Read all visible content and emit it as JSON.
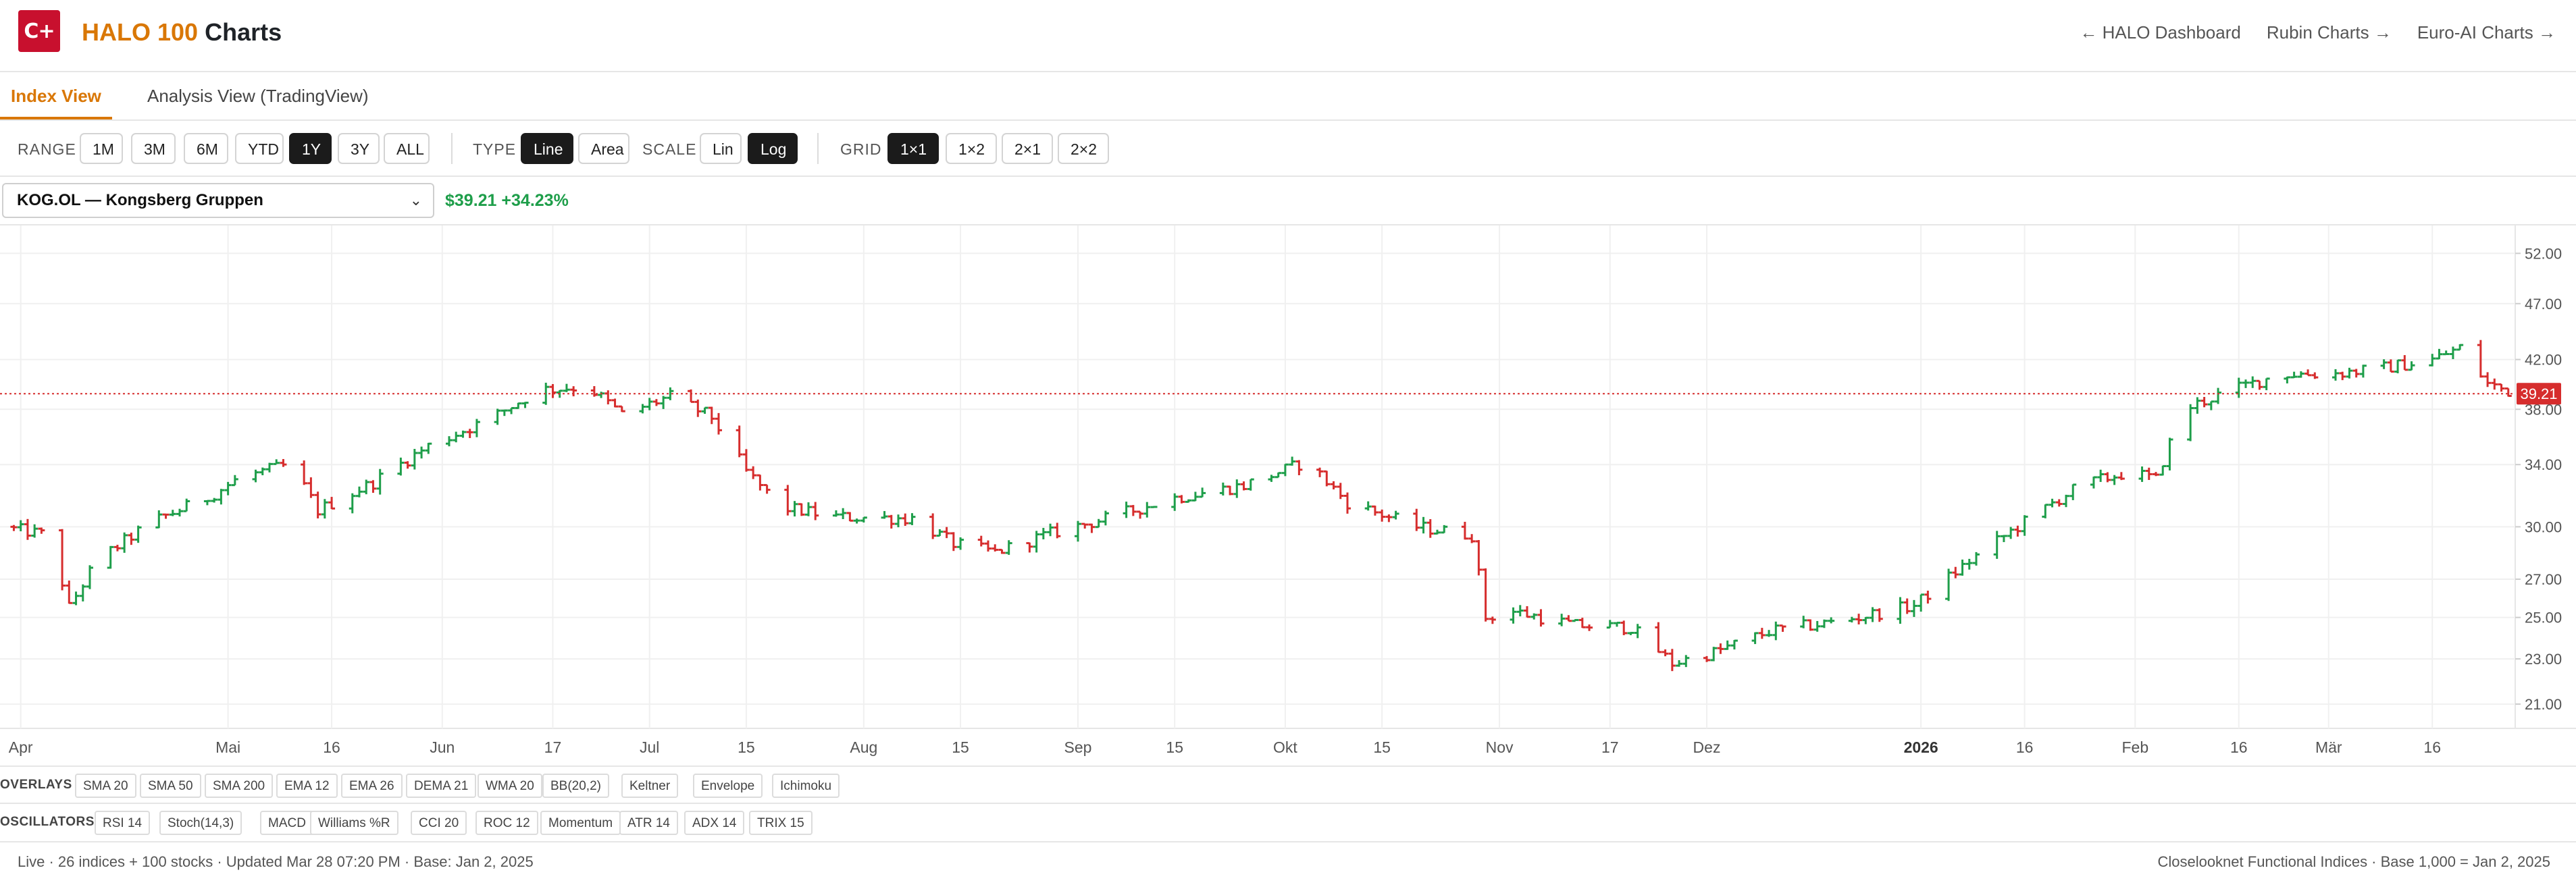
{
  "app": {
    "logo_text": "C+",
    "title_brand": "HALO 100",
    "title_rest": "Charts",
    "links": [
      "← HALO Dashboard",
      "Rubin Charts →",
      "Euro-AI Charts →"
    ]
  },
  "tabs": [
    {
      "label": "Index View",
      "active": true
    },
    {
      "label": "Analysis View (TradingView)",
      "active": false
    }
  ],
  "toolbar": {
    "range_label": "RANGE",
    "ranges": [
      {
        "label": "1M",
        "active": false
      },
      {
        "label": "3M",
        "active": false
      },
      {
        "label": "6M",
        "active": false
      },
      {
        "label": "YTD",
        "active": false
      },
      {
        "label": "1Y",
        "active": true
      },
      {
        "label": "3Y",
        "active": false
      },
      {
        "label": "ALL",
        "active": false
      }
    ],
    "type_label": "TYPE",
    "types": [
      {
        "label": "Line",
        "active": true
      },
      {
        "label": "Area",
        "active": false
      }
    ],
    "scale_label": "SCALE",
    "scales": [
      {
        "label": "Lin",
        "active": false
      },
      {
        "label": "Log",
        "active": true
      }
    ],
    "grid_label": "GRID",
    "grids": [
      {
        "label": "1×1",
        "active": true
      },
      {
        "label": "1×2",
        "active": false
      },
      {
        "label": "2×1",
        "active": false
      },
      {
        "label": "2×2",
        "active": false
      }
    ]
  },
  "symbol": {
    "selected": "KOG.OL — Kongsberg Gruppen",
    "price": "$39.21",
    "change": "+34.23%"
  },
  "chart_data": {
    "type": "ohlc",
    "scale": "log",
    "last_price": 39.21,
    "last_price_label": "39.21",
    "y_ticks": [
      21.0,
      23.0,
      25.0,
      27.0,
      30.0,
      34.0,
      38.0,
      42.0,
      47.0,
      52.0
    ],
    "y_tick_labels": [
      "21.00",
      "23.00",
      "25.00",
      "27.00",
      "30.00",
      "34.00",
      "38.00",
      "42.00",
      "47.00",
      "52.00"
    ],
    "x_ticks": [
      {
        "label": "Apr",
        "date": "2025-04-01",
        "bold": false
      },
      {
        "label": "Mai",
        "date": "2025-05-01",
        "bold": false
      },
      {
        "label": "16",
        "date": "2025-05-16",
        "bold": false
      },
      {
        "label": "Jun",
        "date": "2025-06-01",
        "bold": false
      },
      {
        "label": "17",
        "date": "2025-06-17",
        "bold": false
      },
      {
        "label": "Jul",
        "date": "2025-07-01",
        "bold": false
      },
      {
        "label": "15",
        "date": "2025-07-15",
        "bold": false
      },
      {
        "label": "Aug",
        "date": "2025-08-01",
        "bold": false
      },
      {
        "label": "15",
        "date": "2025-08-15",
        "bold": false
      },
      {
        "label": "Sep",
        "date": "2025-09-01",
        "bold": false
      },
      {
        "label": "15",
        "date": "2025-09-15",
        "bold": false
      },
      {
        "label": "Okt",
        "date": "2025-10-01",
        "bold": false
      },
      {
        "label": "15",
        "date": "2025-10-15",
        "bold": false
      },
      {
        "label": "Nov",
        "date": "2025-11-01",
        "bold": false
      },
      {
        "label": "17",
        "date": "2025-11-17",
        "bold": false
      },
      {
        "label": "Dez",
        "date": "2025-12-01",
        "bold": false
      },
      {
        "label": "2026",
        "date": "2026-01-01",
        "bold": true
      },
      {
        "label": "16",
        "date": "2026-01-16",
        "bold": false
      },
      {
        "label": "Feb",
        "date": "2026-02-01",
        "bold": false
      },
      {
        "label": "16",
        "date": "2026-02-16",
        "bold": false
      },
      {
        "label": "Mär",
        "date": "2026-03-01",
        "bold": false
      },
      {
        "label": "16",
        "date": "2026-03-16",
        "bold": false
      }
    ],
    "x_range": [
      "2025-03-29",
      "2026-03-28"
    ],
    "y_range": [
      20.0,
      55.0
    ],
    "up_color": "#1e9e4a",
    "down_color": "#d62d2d",
    "price_line_color": "#d62d2d",
    "grid": true,
    "path_anchors": [
      {
        "date": "2025-03-29",
        "close": 30.0
      },
      {
        "date": "2025-04-05",
        "close": 29.5
      },
      {
        "date": "2025-04-08",
        "close": 25.5
      },
      {
        "date": "2025-04-12",
        "close": 28.0
      },
      {
        "date": "2025-04-20",
        "close": 30.3
      },
      {
        "date": "2025-04-28",
        "close": 31.8
      },
      {
        "date": "2025-05-03",
        "close": 33.2
      },
      {
        "date": "2025-05-10",
        "close": 34.0
      },
      {
        "date": "2025-05-14",
        "close": 31.0
      },
      {
        "date": "2025-05-22",
        "close": 32.8
      },
      {
        "date": "2025-05-30",
        "close": 35.3
      },
      {
        "date": "2025-06-08",
        "close": 37.3
      },
      {
        "date": "2025-06-15",
        "close": 39.5
      },
      {
        "date": "2025-06-22",
        "close": 39.8
      },
      {
        "date": "2025-06-27",
        "close": 37.6
      },
      {
        "date": "2025-07-04",
        "close": 39.0
      },
      {
        "date": "2025-07-10",
        "close": 37.4
      },
      {
        "date": "2025-07-15",
        "close": 33.5
      },
      {
        "date": "2025-07-20",
        "close": 31.2
      },
      {
        "date": "2025-07-28",
        "close": 30.6
      },
      {
        "date": "2025-08-08",
        "close": 30.5
      },
      {
        "date": "2025-08-14",
        "close": 29.0
      },
      {
        "date": "2025-08-20",
        "close": 28.5
      },
      {
        "date": "2025-08-28",
        "close": 29.6
      },
      {
        "date": "2025-09-05",
        "close": 30.5
      },
      {
        "date": "2025-09-15",
        "close": 31.8
      },
      {
        "date": "2025-09-25",
        "close": 32.6
      },
      {
        "date": "2025-10-04",
        "close": 34.2
      },
      {
        "date": "2025-10-10",
        "close": 31.5
      },
      {
        "date": "2025-10-20",
        "close": 30.0
      },
      {
        "date": "2025-10-28",
        "close": 29.5
      },
      {
        "date": "2025-10-30",
        "close": 25.0
      },
      {
        "date": "2025-11-03",
        "close": 25.3
      },
      {
        "date": "2025-11-12",
        "close": 24.6
      },
      {
        "date": "2025-11-20",
        "close": 24.5
      },
      {
        "date": "2025-11-26",
        "close": 22.8
      },
      {
        "date": "2025-12-02",
        "close": 23.3
      },
      {
        "date": "2025-12-10",
        "close": 24.3
      },
      {
        "date": "2025-12-20",
        "close": 24.8
      },
      {
        "date": "2025-12-31",
        "close": 25.6
      },
      {
        "date": "2026-01-08",
        "close": 28.0
      },
      {
        "date": "2026-01-16",
        "close": 30.3
      },
      {
        "date": "2026-01-24",
        "close": 32.6
      },
      {
        "date": "2026-01-31",
        "close": 33.5
      },
      {
        "date": "2026-02-04",
        "close": 33.0
      },
      {
        "date": "2026-02-08",
        "close": 38.0
      },
      {
        "date": "2026-02-14",
        "close": 39.3
      },
      {
        "date": "2026-02-22",
        "close": 40.8
      },
      {
        "date": "2026-03-01",
        "close": 40.8
      },
      {
        "date": "2026-03-08",
        "close": 41.2
      },
      {
        "date": "2026-03-16",
        "close": 42.0
      },
      {
        "date": "2026-03-20",
        "close": 43.0
      },
      {
        "date": "2026-03-24",
        "close": 40.0
      },
      {
        "date": "2026-03-28",
        "close": 39.21
      }
    ]
  },
  "overlays": {
    "label": "OVERLAYS",
    "items": [
      "SMA 20",
      "SMA 50",
      "SMA 200",
      "EMA 12",
      "EMA 26",
      "DEMA 21",
      "WMA 20",
      "BB(20,2)",
      "Keltner",
      "Envelope",
      "Ichimoku"
    ]
  },
  "oscillators": {
    "label": "OSCILLATORS",
    "items": [
      "RSI 14",
      "Stoch(14,3)",
      "MACD",
      "Williams %R",
      "CCI 20",
      "ROC 12",
      "Momentum",
      "ATR 14",
      "ADX 14",
      "TRIX 15"
    ]
  },
  "footer": {
    "left": "Live · 26 indices + 100 stocks · Updated Mar 28 07:20 PM · Base: Jan 2, 2025",
    "right": "Closelooknet Functional Indices · Base 1,000 = Jan 2, 2025"
  }
}
